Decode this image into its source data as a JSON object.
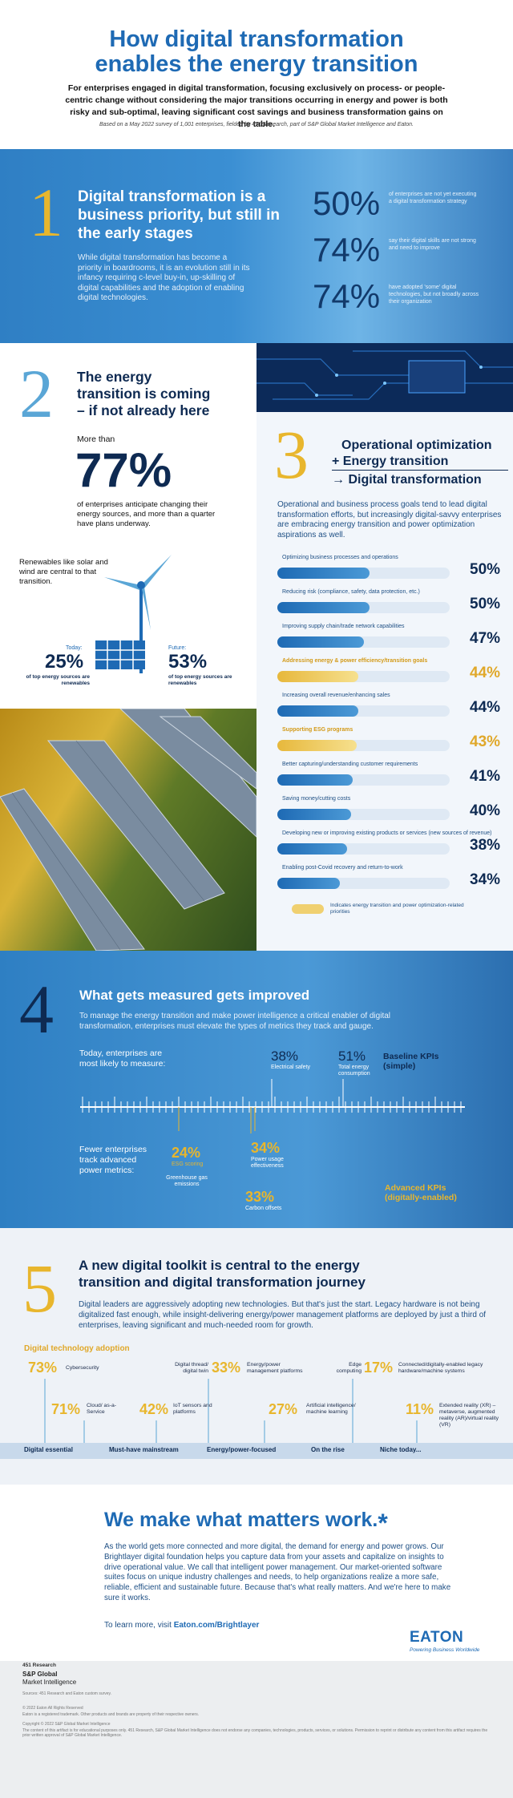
{
  "header": {
    "title_line1": "How digital transformation",
    "title_line2": "enables the energy transition",
    "intro": "For enterprises engaged in digital transformation, focusing exclusively on process- or people-centric change without considering the major transitions occurring in energy and power is both risky and sub-optimal, leaving significant cost savings and business transformation gains on the table.",
    "note": "Based on a May 2022 survey of 1,001 enterprises, fielded by 451 Research, part of S&P Global Market Intelligence and Eaton."
  },
  "s1": {
    "num": "1",
    "title": "Digital transformation is a business priority, but still in the early stages",
    "text": "While digital transformation has become a priority in boardrooms, it is an evolution still in its infancy requiring c-level buy-in, up-skilling of digital capabilities and the adoption of enabling digital technologies.",
    "stats": [
      {
        "value": "50%",
        "text": "of enterprises are not yet executing a digital transformation strategy"
      },
      {
        "value": "74%",
        "text": "say their digital skills are not strong and need to improve"
      },
      {
        "value": "74%",
        "text": "have adopted 'some' digital technologies, but not broadly across their organization"
      }
    ]
  },
  "s2": {
    "num": "2",
    "title": "The energy transition is coming – if not already here",
    "more": "More than",
    "pct": "77%",
    "text": "of enterprises anticipate changing their energy sources, and more than a quarter have plans underway.",
    "renew": "Renewables like solar and wind are central to that transition.",
    "today_label": "Today:",
    "today_pct": "25%",
    "today_text": "of top energy sources are renewables",
    "future_label": "Future:",
    "future_pct": "53%",
    "future_text": "of top energy sources are renewables"
  },
  "s3": {
    "num": "3",
    "title1": "Operational optimization",
    "title2": "+ Energy transition",
    "title3": "→ Digital transformation",
    "text": "Operational and business process goals tend to lead digital transformation efforts, but increasingly digital-savvy enterprises are embracing energy transition and power optimization aspirations as well.",
    "bars": [
      {
        "label": "Optimizing business processes and operations",
        "value": "50%",
        "pct": 50,
        "energy": false
      },
      {
        "label": "Reducing risk (compliance, safety, data protection, etc.)",
        "value": "50%",
        "pct": 50,
        "energy": false
      },
      {
        "label": "Improving supply chain/trade network capabilities",
        "value": "47%",
        "pct": 47,
        "energy": false
      },
      {
        "label": "Addressing energy & power efficiency/transition goals",
        "value": "44%",
        "pct": 44,
        "energy": true
      },
      {
        "label": "Increasing overall revenue/enhancing sales",
        "value": "44%",
        "pct": 44,
        "energy": false
      },
      {
        "label": "Supporting ESG programs",
        "value": "43%",
        "pct": 43,
        "energy": true
      },
      {
        "label": "Better capturing/understanding customer requirements",
        "value": "41%",
        "pct": 41,
        "energy": false
      },
      {
        "label": "Saving money/cutting costs",
        "value": "40%",
        "pct": 40,
        "energy": false
      },
      {
        "label": "Developing new or improving existing products or services (new sources of revenue)",
        "value": "38%",
        "pct": 38,
        "energy": false
      },
      {
        "label": "Enabling post-Covid recovery and return-to-work",
        "value": "34%",
        "pct": 34,
        "energy": false
      }
    ],
    "legend": "Indicates energy transition and power optimization-related priorities"
  },
  "s4": {
    "num": "4",
    "title": "What gets measured gets improved",
    "text": "To manage the energy transition and make power intelligence a critical enabler of digital transformation, enterprises must elevate the types of metrics they track and gauge.",
    "today": "Today, enterprises are most likely to measure:",
    "fewer": "Fewer enterprises track advanced power metrics:",
    "baseline": "Baseline KPIs (simple)",
    "advanced": "Advanced KPIs (digitally-enabled)",
    "base_metrics": [
      {
        "value": "38%",
        "label": "Electrical safety"
      },
      {
        "value": "51%",
        "label": "Total energy consumption"
      }
    ],
    "adv_metrics": [
      {
        "value": "24%",
        "label": "ESG scoring"
      },
      {
        "value": "",
        "label": "Greenhouse gas emissions"
      },
      {
        "value": "34%",
        "label": "Power usage effectiveness"
      },
      {
        "value": "33%",
        "label": "Carbon offsets"
      }
    ]
  },
  "s5": {
    "num": "5",
    "title": "A new digital toolkit is central to the energy transition and digital transformation journey",
    "text": "Digital leaders are aggressively adopting new technologies. But that's just the start. Legacy hardware is not being digitalized fast enough, while insight-delivering energy/power management platforms are deployed by just a third of enterprises, leaving significant and much-needed room for growth.",
    "adoption": "Digital technology adoption",
    "tech": [
      {
        "value": "73%",
        "label": "Cybersecurity"
      },
      {
        "value": "71%",
        "label": "Cloud/ as-a-Service"
      },
      {
        "value": "42%",
        "label": "IoT sensors and platforms"
      },
      {
        "value": "33%",
        "label": "Energy/power management platforms"
      },
      {
        "pre": "Digital thread/ digital twin",
        "value": "",
        "label": ""
      },
      {
        "value": "27%",
        "label": "Artificial intelligence/ machine learning"
      },
      {
        "pre": "Edge computing",
        "value": "17%",
        "label": "Connected/digitally-enabled legacy hardware/machine systems"
      },
      {
        "value": "11%",
        "label": "Extended reality (XR) – metaverse, augmented reality (AR)/virtual reality (VR)"
      }
    ],
    "categories": [
      "Digital essential",
      "Must-have mainstream",
      "Energy/power-focused",
      "On the rise",
      "Niche today..."
    ]
  },
  "closing": {
    "title": "We make what matters work.",
    "star": "*",
    "text": "As the world gets more connected and more digital, the demand for energy and power grows. Our Brightlayer digital foundation helps you capture data from your assets and capitalize on insights to drive operational value. We call that intelligent power management. Our market-oriented software suites focus on unique industry challenges and needs, to help organizations realize a more safe, reliable, efficient and sustainable future. Because that's what really matters. And we're here to make sure it works.",
    "learn_pre": "To learn more, visit ",
    "learn_link": "Eaton.com/Brightlayer",
    "logo": "EATON",
    "tagline": "Powering Business Worldwide"
  },
  "footer": {
    "brand1": "451 Research",
    "brand2": "S&P Global",
    "brand3": "Market Intelligence",
    "source": "Sources: 451 Research and Eaton custom survey.",
    "copy1": "© 2022 Eaton All Rights Reserved",
    "copy2": "Eaton is a registered trademark. Other products and brands are property of their respective owners.",
    "copy3": "Copyright © 2022 S&P Global Market Intelligence",
    "legal": "The content of this artifact is for educational purposes only. 451 Research, S&P Global Market Intelligence does not endorse any companies, technologies, products, services, or solutions. Permission to reprint or distribute any content from this artifact requires the prior written approval of S&P Global Market Intelligence."
  },
  "colors": {
    "blue": "#1e6ab4",
    "navy": "#0e2a52",
    "gold": "#e8b62d"
  }
}
